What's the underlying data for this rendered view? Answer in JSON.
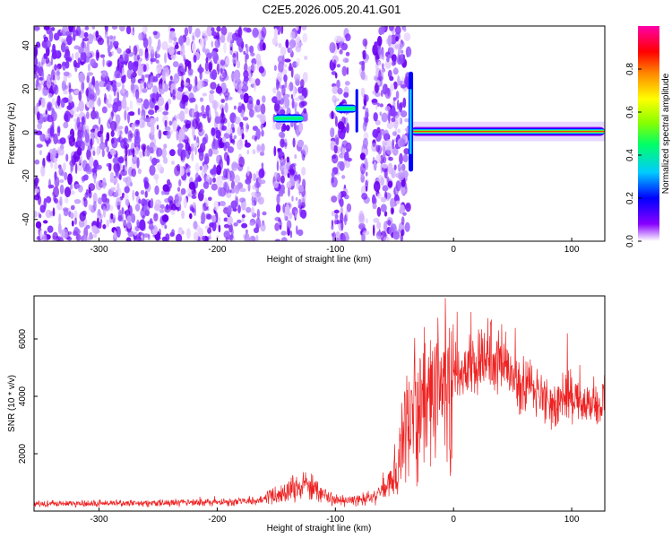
{
  "title": "C2E5.2026.005.20.41.G01",
  "chart_data": [
    {
      "type": "heatmap",
      "xlabel": "Height of straight line (km)",
      "ylabel": "Frequency (Hz)",
      "xlim": [
        -355,
        128
      ],
      "ylim": [
        -50,
        49
      ],
      "xticks": [
        -300,
        -200,
        -100,
        0,
        100
      ],
      "xtick_labels": [
        "-300",
        "-200",
        "-100",
        "0",
        "100"
      ],
      "yticks": [
        -40,
        -20,
        0,
        20,
        40
      ],
      "ytick_labels": [
        "-40",
        "-20",
        "0",
        "20",
        "40"
      ],
      "noise_region_x": [
        -355,
        -38
      ],
      "gaps_x": [
        [
          -160,
          -152
        ],
        [
          -125,
          -103
        ],
        [
          -88,
          -78
        ],
        [
          -73,
          -68
        ]
      ],
      "signal_segments": [
        {
          "x": [
            -152,
            -127
          ],
          "freq": 6.5,
          "amp": 0.45
        },
        {
          "x": [
            -100,
            -82
          ],
          "freq": 11,
          "amp": 0.45
        },
        {
          "x": [
            -36,
            128
          ],
          "freq": 0.5,
          "amp": 0.85
        }
      ],
      "colorbar": {
        "label": "Normalized spectral amplitude",
        "range": [
          0,
          1
        ],
        "ticks": [
          0,
          0.2,
          0.4,
          0.6,
          0.8
        ],
        "tick_labels": [
          "0.0",
          "0.2",
          "0.4",
          "0.6",
          "0.8"
        ],
        "colors": [
          "#ffffff",
          "#8800ff",
          "#0000ff",
          "#00ccff",
          "#00ff66",
          "#88ff00",
          "#ffff00",
          "#ff8800",
          "#ff0000",
          "#ff00aa"
        ]
      }
    },
    {
      "type": "line",
      "xlabel": "Height of straight line (km)",
      "ylabel": "SNR (10 * v/v)",
      "xlim": [
        -355,
        128
      ],
      "ylim": [
        0,
        7500
      ],
      "xticks": [
        -300,
        -200,
        -100,
        0,
        100
      ],
      "xtick_labels": [
        "-300",
        "-200",
        "-100",
        "0",
        "100"
      ],
      "yticks": [
        2000,
        4000,
        6000
      ],
      "ytick_labels": [
        "2000",
        "4000",
        "6000"
      ],
      "series": [
        {
          "name": "SNR",
          "color": "#ee2222",
          "x": [
            -355,
            -320,
            -300,
            -280,
            -250,
            -220,
            -200,
            -180,
            -165,
            -150,
            -140,
            -130,
            -125,
            -115,
            -105,
            -95,
            -85,
            -75,
            -65,
            -55,
            -50,
            -45,
            -40,
            -35,
            -30,
            -25,
            -20,
            -15,
            -10,
            -5,
            0,
            10,
            20,
            30,
            35,
            45,
            55,
            65,
            75,
            85,
            95,
            105,
            115,
            128
          ],
          "values": [
            250,
            270,
            280,
            260,
            280,
            300,
            310,
            330,
            380,
            550,
            720,
            850,
            950,
            700,
            480,
            350,
            380,
            450,
            600,
            900,
            1300,
            2000,
            2800,
            3400,
            3600,
            4000,
            4300,
            4200,
            4000,
            4300,
            4800,
            5000,
            5200,
            5500,
            5400,
            5000,
            4500,
            4200,
            4000,
            3700,
            4100,
            3800,
            3700,
            3900
          ]
        }
      ]
    }
  ]
}
